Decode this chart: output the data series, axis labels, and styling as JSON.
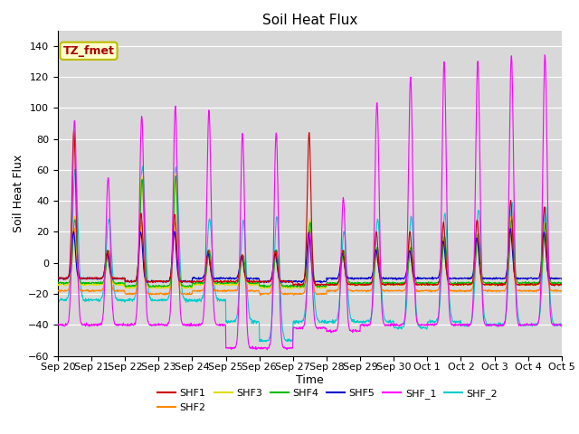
{
  "title": "Soil Heat Flux",
  "xlabel": "Time",
  "ylabel": "Soil Heat Flux",
  "ylim": [
    -60,
    150
  ],
  "yticks": [
    -60,
    -40,
    -20,
    0,
    20,
    40,
    60,
    80,
    100,
    120,
    140
  ],
  "bg_color": "#d8d8d8",
  "series_colors": {
    "SHF1": "#cc0000",
    "SHF2": "#ff8800",
    "SHF3": "#dddd00",
    "SHF4": "#00bb00",
    "SHF5": "#0000cc",
    "SHF_1": "#ff00ff",
    "SHF_2": "#00cccc"
  },
  "tz_label": "TZ_fmet",
  "x_tick_labels": [
    "Sep 20",
    "Sep 21",
    "Sep 22",
    "Sep 23",
    "Sep 24",
    "Sep 25",
    "Sep 26",
    "Sep 27",
    "Sep 28",
    "Sep 29",
    "Sep 30",
    "Oct 1",
    "Oct 2",
    "Oct 3",
    "Oct 4",
    "Oct 5"
  ]
}
